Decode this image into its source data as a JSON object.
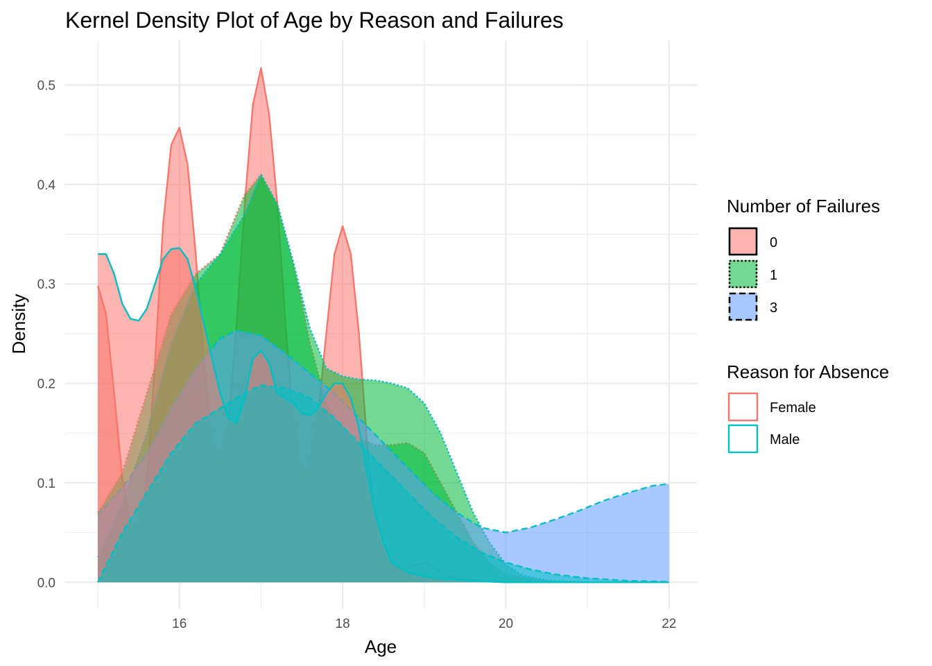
{
  "chart_data": {
    "type": "area",
    "title": "Kernel Density Plot of Age by Reason and Failures",
    "xlabel": "Age",
    "ylabel": "Density",
    "xlim": [
      14.6,
      22.35
    ],
    "ylim": [
      -0.027,
      0.545
    ],
    "x_ticks": [
      16,
      18,
      20,
      22
    ],
    "x_tick_labels": [
      "16",
      "18",
      "20",
      "22"
    ],
    "y_ticks": [
      0.0,
      0.1,
      0.2,
      0.3,
      0.4,
      0.5
    ],
    "y_tick_labels": [
      "0.0",
      "0.1",
      "0.2",
      "0.3",
      "0.4",
      "0.5"
    ],
    "grid": true,
    "legend_placement": "right",
    "fill_legend": {
      "title": "Number of Failures",
      "items": [
        {
          "label": "0",
          "color": "#F8766D",
          "linetype": "solid"
        },
        {
          "label": "1",
          "color": "#00BA38",
          "linetype": "dotted"
        },
        {
          "label": "3",
          "color": "#619CFF",
          "linetype": "dashed"
        }
      ]
    },
    "color_legend": {
      "title": "Reason for Absence",
      "items": [
        {
          "label": "Female",
          "color": "#F8766D"
        },
        {
          "label": "Male",
          "color": "#00BFC4"
        }
      ]
    },
    "series": [
      {
        "failures": "0",
        "reason": "Female",
        "fill": "#F8766D",
        "stroke": "#F8766D",
        "linetype": "solid",
        "points": [
          [
            15.0,
            0.298
          ],
          [
            15.1,
            0.27
          ],
          [
            15.2,
            0.19
          ],
          [
            15.3,
            0.105
          ],
          [
            15.4,
            0.06
          ],
          [
            15.5,
            0.06
          ],
          [
            15.6,
            0.1
          ],
          [
            15.7,
            0.22
          ],
          [
            15.8,
            0.36
          ],
          [
            15.9,
            0.44
          ],
          [
            16.0,
            0.457
          ],
          [
            16.1,
            0.42
          ],
          [
            16.2,
            0.33
          ],
          [
            16.3,
            0.22
          ],
          [
            16.4,
            0.14
          ],
          [
            16.5,
            0.12
          ],
          [
            16.6,
            0.16
          ],
          [
            16.7,
            0.26
          ],
          [
            16.8,
            0.38
          ],
          [
            16.9,
            0.48
          ],
          [
            17.0,
            0.517
          ],
          [
            17.1,
            0.47
          ],
          [
            17.2,
            0.38
          ],
          [
            17.3,
            0.26
          ],
          [
            17.4,
            0.16
          ],
          [
            17.5,
            0.11
          ],
          [
            17.6,
            0.12
          ],
          [
            17.7,
            0.17
          ],
          [
            17.8,
            0.25
          ],
          [
            17.9,
            0.33
          ],
          [
            18.0,
            0.358
          ],
          [
            18.1,
            0.33
          ],
          [
            18.2,
            0.25
          ],
          [
            18.3,
            0.14
          ],
          [
            18.4,
            0.06
          ],
          [
            18.5,
            0.025
          ],
          [
            18.7,
            0.012
          ],
          [
            19.0,
            0.02
          ],
          [
            19.3,
            0.006
          ],
          [
            19.7,
            0.001
          ],
          [
            20.0,
            0.0
          ]
        ]
      },
      {
        "failures": "1",
        "reason": "Female",
        "fill": "#00BA38",
        "stroke": "#F8766D",
        "linetype": "dotted",
        "points": [
          [
            15.0,
            0.07
          ],
          [
            15.3,
            0.11
          ],
          [
            15.6,
            0.19
          ],
          [
            15.9,
            0.27
          ],
          [
            16.2,
            0.31
          ],
          [
            16.5,
            0.33
          ],
          [
            16.8,
            0.39
          ],
          [
            17.0,
            0.41
          ],
          [
            17.2,
            0.38
          ],
          [
            17.4,
            0.32
          ],
          [
            17.6,
            0.24
          ],
          [
            17.8,
            0.18
          ],
          [
            18.0,
            0.155
          ],
          [
            18.2,
            0.145
          ],
          [
            18.4,
            0.138
          ],
          [
            18.6,
            0.138
          ],
          [
            18.8,
            0.14
          ],
          [
            19.0,
            0.13
          ],
          [
            19.2,
            0.1
          ],
          [
            19.4,
            0.07
          ],
          [
            19.6,
            0.04
          ],
          [
            19.8,
            0.02
          ],
          [
            20.0,
            0.008
          ],
          [
            20.3,
            0.003
          ],
          [
            20.6,
            0.0
          ]
        ]
      },
      {
        "failures": "1",
        "reason": "Male",
        "fill": "#00BA38",
        "stroke": "#00BFC4",
        "linetype": "dotted",
        "points": [
          [
            15.0,
            0.025
          ],
          [
            15.3,
            0.08
          ],
          [
            15.6,
            0.15
          ],
          [
            15.9,
            0.24
          ],
          [
            16.2,
            0.3
          ],
          [
            16.5,
            0.33
          ],
          [
            16.8,
            0.37
          ],
          [
            17.0,
            0.41
          ],
          [
            17.2,
            0.38
          ],
          [
            17.4,
            0.32
          ],
          [
            17.6,
            0.255
          ],
          [
            17.8,
            0.215
          ],
          [
            18.0,
            0.207
          ],
          [
            18.2,
            0.204
          ],
          [
            18.4,
            0.203
          ],
          [
            18.6,
            0.2
          ],
          [
            18.8,
            0.195
          ],
          [
            19.0,
            0.18
          ],
          [
            19.2,
            0.15
          ],
          [
            19.4,
            0.11
          ],
          [
            19.6,
            0.07
          ],
          [
            19.8,
            0.04
          ],
          [
            20.0,
            0.018
          ],
          [
            20.2,
            0.007
          ],
          [
            20.5,
            0.002
          ],
          [
            21.0,
            0.0
          ]
        ]
      },
      {
        "failures": "3",
        "reason": "Male",
        "fill": "#619CFF",
        "stroke": "#00BFC4",
        "linetype": "dashed",
        "points": [
          [
            15.0,
            0.068
          ],
          [
            15.3,
            0.095
          ],
          [
            15.6,
            0.13
          ],
          [
            15.9,
            0.175
          ],
          [
            16.2,
            0.215
          ],
          [
            16.5,
            0.245
          ],
          [
            16.7,
            0.253
          ],
          [
            17.0,
            0.248
          ],
          [
            17.3,
            0.23
          ],
          [
            17.6,
            0.21
          ],
          [
            17.9,
            0.19
          ],
          [
            18.2,
            0.165
          ],
          [
            18.5,
            0.14
          ],
          [
            18.8,
            0.115
          ],
          [
            19.1,
            0.09
          ],
          [
            19.4,
            0.07
          ],
          [
            19.7,
            0.055
          ],
          [
            20.0,
            0.05
          ],
          [
            20.3,
            0.055
          ],
          [
            20.6,
            0.063
          ],
          [
            20.9,
            0.072
          ],
          [
            21.2,
            0.082
          ],
          [
            21.5,
            0.09
          ],
          [
            21.8,
            0.097
          ],
          [
            22.0,
            0.099
          ]
        ]
      },
      {
        "failures": "0",
        "reason": "Male",
        "fill": "#F8766D",
        "stroke": "#00BFC4",
        "linetype": "solid",
        "points": [
          [
            15.0,
            0.33
          ],
          [
            15.1,
            0.33
          ],
          [
            15.2,
            0.31
          ],
          [
            15.3,
            0.28
          ],
          [
            15.4,
            0.265
          ],
          [
            15.5,
            0.263
          ],
          [
            15.6,
            0.275
          ],
          [
            15.7,
            0.3
          ],
          [
            15.8,
            0.325
          ],
          [
            15.9,
            0.335
          ],
          [
            16.0,
            0.336
          ],
          [
            16.1,
            0.325
          ],
          [
            16.2,
            0.295
          ],
          [
            16.3,
            0.26
          ],
          [
            16.4,
            0.225
          ],
          [
            16.5,
            0.19
          ],
          [
            16.6,
            0.165
          ],
          [
            16.7,
            0.16
          ],
          [
            16.8,
            0.185
          ],
          [
            16.9,
            0.225
          ],
          [
            17.0,
            0.233
          ],
          [
            17.1,
            0.22
          ],
          [
            17.2,
            0.19
          ],
          [
            17.3,
            0.185
          ],
          [
            17.4,
            0.18
          ],
          [
            17.5,
            0.17
          ],
          [
            17.6,
            0.168
          ],
          [
            17.7,
            0.175
          ],
          [
            17.8,
            0.19
          ],
          [
            17.9,
            0.2
          ],
          [
            18.0,
            0.2
          ],
          [
            18.1,
            0.185
          ],
          [
            18.2,
            0.155
          ],
          [
            18.3,
            0.11
          ],
          [
            18.4,
            0.07
          ],
          [
            18.5,
            0.04
          ],
          [
            18.6,
            0.02
          ],
          [
            18.8,
            0.01
          ],
          [
            19.0,
            0.006
          ],
          [
            19.3,
            0.003
          ],
          [
            19.7,
            0.001
          ],
          [
            20.0,
            0.0
          ],
          [
            22.0,
            0.0
          ]
        ]
      },
      {
        "failures": "3",
        "reason": "Male",
        "fill": "#00BFC4",
        "stroke": "#00BFC4",
        "linetype": "dashed",
        "points": [
          [
            15.0,
            0.0
          ],
          [
            15.3,
            0.05
          ],
          [
            15.6,
            0.09
          ],
          [
            15.9,
            0.13
          ],
          [
            16.2,
            0.16
          ],
          [
            16.5,
            0.175
          ],
          [
            16.8,
            0.19
          ],
          [
            17.0,
            0.198
          ],
          [
            17.3,
            0.195
          ],
          [
            17.6,
            0.185
          ],
          [
            17.9,
            0.165
          ],
          [
            18.2,
            0.14
          ],
          [
            18.5,
            0.115
          ],
          [
            18.8,
            0.09
          ],
          [
            19.1,
            0.065
          ],
          [
            19.4,
            0.045
          ],
          [
            19.7,
            0.03
          ],
          [
            20.0,
            0.02
          ],
          [
            20.3,
            0.013
          ],
          [
            20.6,
            0.008
          ],
          [
            21.0,
            0.004
          ],
          [
            21.5,
            0.0015
          ],
          [
            22.0,
            0.0005
          ]
        ]
      }
    ]
  }
}
